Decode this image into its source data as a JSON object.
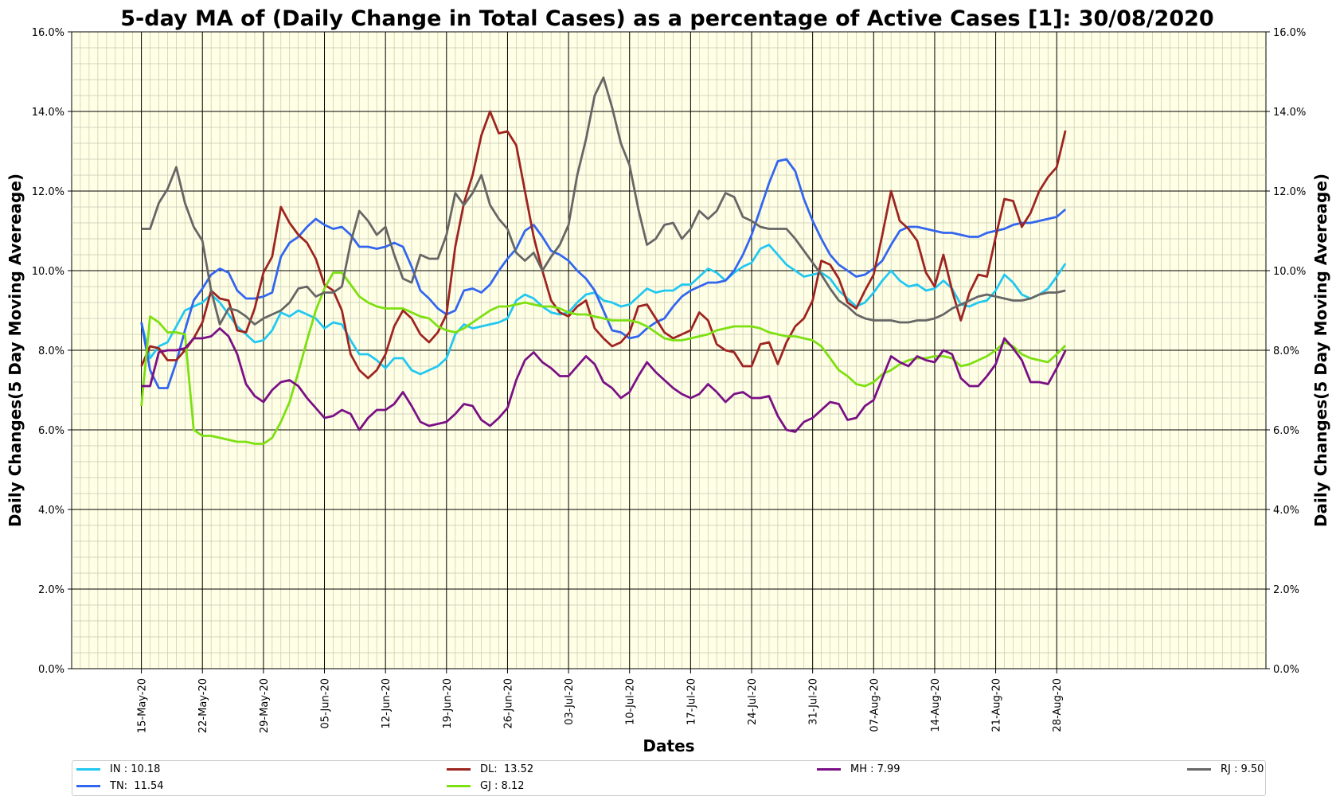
{
  "chart_data": {
    "type": "line",
    "title": "5-day MA of (Daily Change in Total Cases) as a percentage of Active Cases [1]: 30/08/2020",
    "xlabel": "Dates",
    "ylabel": "Daily Changes(5 Day Moving Avereage)",
    "ylim": [
      0,
      16
    ],
    "y_ticks": [
      "0.0%",
      "2.0%",
      "4.0%",
      "6.0%",
      "8.0%",
      "10.0%",
      "12.0%",
      "14.0%",
      "16.0%"
    ],
    "x_ticks": [
      "15-May-20",
      "22-May-20",
      "29-May-20",
      "05-Jun-20",
      "12-Jun-20",
      "19-Jun-20",
      "26-Jun-20",
      "03-Jul-20",
      "10-Jul-20",
      "17-Jul-20",
      "24-Jul-20",
      "31-Jul-20",
      "07-Aug-20",
      "14-Aug-20",
      "21-Aug-20",
      "28-Aug-20"
    ],
    "x_start": "15-May-20",
    "grid": true,
    "legend_position": "bottom",
    "background_color": "#ffffe6",
    "series": [
      {
        "name": "IN : 10.18",
        "color": "#22c8f0",
        "values": [
          8.7,
          7.8,
          8.1,
          8.2,
          8.6,
          9.0,
          9.1,
          9.2,
          9.4,
          9.2,
          8.9,
          8.6,
          8.4,
          8.2,
          8.25,
          8.5,
          8.95,
          8.85,
          9.0,
          8.9,
          8.8,
          8.55,
          8.7,
          8.65,
          8.25,
          7.9,
          7.9,
          7.75,
          7.55,
          7.8,
          7.8,
          7.5,
          7.4,
          7.5,
          7.6,
          7.8,
          8.4,
          8.65,
          8.55,
          8.6,
          8.65,
          8.7,
          8.8,
          9.25,
          9.4,
          9.3,
          9.1,
          8.95,
          8.9,
          8.95,
          9.2,
          9.4,
          9.45,
          9.25,
          9.2,
          9.1,
          9.15,
          9.35,
          9.55,
          9.45,
          9.5,
          9.5,
          9.65,
          9.65,
          9.85,
          10.05,
          9.95,
          9.75,
          9.95,
          10.1,
          10.2,
          10.55,
          10.65,
          10.4,
          10.15,
          10.0,
          9.85,
          9.9,
          9.95,
          9.8,
          9.5,
          9.3,
          9.1,
          9.2,
          9.45,
          9.75,
          10.0,
          9.75,
          9.6,
          9.65,
          9.5,
          9.55,
          9.75,
          9.55,
          9.15,
          9.1,
          9.2,
          9.25,
          9.5,
          9.9,
          9.7,
          9.4,
          9.3,
          9.4,
          9.55,
          9.85,
          10.18
        ]
      },
      {
        "name": "TN:  11.54",
        "color": "#3366ee",
        "values": [
          8.7,
          7.5,
          7.05,
          7.05,
          7.7,
          8.5,
          9.25,
          9.55,
          9.9,
          10.05,
          9.95,
          9.5,
          9.3,
          9.3,
          9.35,
          9.45,
          10.35,
          10.7,
          10.85,
          11.1,
          11.3,
          11.15,
          11.05,
          11.1,
          10.9,
          10.6,
          10.6,
          10.55,
          10.6,
          10.7,
          10.6,
          10.1,
          9.5,
          9.3,
          9.05,
          8.9,
          9.0,
          9.5,
          9.55,
          9.45,
          9.65,
          10.0,
          10.3,
          10.55,
          11.0,
          11.15,
          10.85,
          10.5,
          10.4,
          10.25,
          10.0,
          9.8,
          9.5,
          9.0,
          8.5,
          8.45,
          8.3,
          8.35,
          8.55,
          8.7,
          8.8,
          9.1,
          9.35,
          9.5,
          9.6,
          9.7,
          9.7,
          9.75,
          10.0,
          10.4,
          10.9,
          11.55,
          12.2,
          12.75,
          12.8,
          12.5,
          11.8,
          11.25,
          10.8,
          10.4,
          10.15,
          10.0,
          9.85,
          9.9,
          10.05,
          10.25,
          10.65,
          11.0,
          11.1,
          11.1,
          11.05,
          11.0,
          10.95,
          10.95,
          10.9,
          10.85,
          10.85,
          10.95,
          11.0,
          11.05,
          11.15,
          11.2,
          11.2,
          11.25,
          11.3,
          11.35,
          11.54
        ]
      },
      {
        "name": "DL:  13.52",
        "color": "#9e2420",
        "values": [
          7.6,
          8.1,
          8.05,
          7.75,
          7.75,
          8.0,
          8.3,
          8.7,
          9.5,
          9.3,
          9.25,
          8.5,
          8.45,
          9.05,
          9.95,
          10.35,
          11.6,
          11.2,
          10.9,
          10.7,
          10.3,
          9.65,
          9.5,
          9.0,
          7.9,
          7.5,
          7.3,
          7.5,
          7.9,
          8.6,
          9.0,
          8.8,
          8.4,
          8.2,
          8.45,
          8.9,
          10.6,
          11.7,
          12.4,
          13.4,
          14.0,
          13.45,
          13.5,
          13.15,
          12.0,
          10.85,
          10.0,
          9.25,
          8.95,
          8.85,
          9.1,
          9.25,
          8.55,
          8.3,
          8.1,
          8.2,
          8.45,
          9.1,
          9.15,
          8.8,
          8.45,
          8.3,
          8.4,
          8.5,
          8.95,
          8.75,
          8.15,
          8.0,
          7.95,
          7.6,
          7.6,
          8.15,
          8.2,
          7.65,
          8.2,
          8.6,
          8.8,
          9.25,
          10.25,
          10.15,
          9.8,
          9.2,
          9.05,
          9.5,
          9.9,
          10.9,
          12.0,
          11.25,
          11.05,
          10.75,
          9.95,
          9.6,
          10.4,
          9.5,
          8.75,
          9.45,
          9.9,
          9.85,
          10.85,
          11.8,
          11.75,
          11.1,
          11.45,
          12.0,
          12.35,
          12.6,
          13.52
        ]
      },
      {
        "name": "GJ : 8.12",
        "color": "#7de010",
        "values": [
          6.6,
          8.85,
          8.7,
          8.45,
          8.45,
          8.4,
          6.0,
          5.85,
          5.85,
          5.8,
          5.75,
          5.7,
          5.7,
          5.65,
          5.65,
          5.8,
          6.2,
          6.7,
          7.45,
          8.25,
          9.0,
          9.55,
          9.95,
          9.95,
          9.65,
          9.35,
          9.2,
          9.1,
          9.05,
          9.05,
          9.05,
          8.95,
          8.85,
          8.8,
          8.6,
          8.5,
          8.45,
          8.55,
          8.7,
          8.85,
          9.0,
          9.1,
          9.1,
          9.15,
          9.2,
          9.15,
          9.1,
          9.1,
          9.05,
          8.95,
          8.9,
          8.9,
          8.85,
          8.8,
          8.75,
          8.75,
          8.75,
          8.7,
          8.6,
          8.45,
          8.3,
          8.25,
          8.25,
          8.3,
          8.35,
          8.4,
          8.5,
          8.55,
          8.6,
          8.6,
          8.6,
          8.55,
          8.45,
          8.4,
          8.35,
          8.35,
          8.3,
          8.25,
          8.1,
          7.8,
          7.5,
          7.35,
          7.15,
          7.1,
          7.2,
          7.4,
          7.5,
          7.65,
          7.75,
          7.8,
          7.8,
          7.85,
          7.85,
          7.8,
          7.6,
          7.65,
          7.75,
          7.85,
          8.0,
          8.2,
          8.1,
          7.9,
          7.8,
          7.75,
          7.7,
          7.9,
          8.12
        ]
      },
      {
        "name": "MH : 7.99",
        "color": "#7a1085",
        "values": [
          7.1,
          7.1,
          7.95,
          8.0,
          8.0,
          8.05,
          8.3,
          8.3,
          8.35,
          8.55,
          8.35,
          7.9,
          7.15,
          6.85,
          6.7,
          7.0,
          7.2,
          7.25,
          7.1,
          6.8,
          6.55,
          6.3,
          6.35,
          6.5,
          6.4,
          6.0,
          6.3,
          6.5,
          6.5,
          6.65,
          6.95,
          6.6,
          6.2,
          6.1,
          6.15,
          6.2,
          6.4,
          6.65,
          6.6,
          6.25,
          6.1,
          6.3,
          6.55,
          7.25,
          7.75,
          7.95,
          7.7,
          7.55,
          7.35,
          7.35,
          7.6,
          7.85,
          7.65,
          7.2,
          7.05,
          6.8,
          6.95,
          7.35,
          7.7,
          7.45,
          7.25,
          7.05,
          6.9,
          6.8,
          6.9,
          7.15,
          6.95,
          6.7,
          6.9,
          6.95,
          6.8,
          6.8,
          6.85,
          6.35,
          6.0,
          5.95,
          6.2,
          6.3,
          6.5,
          6.7,
          6.65,
          6.25,
          6.3,
          6.6,
          6.75,
          7.3,
          7.85,
          7.7,
          7.6,
          7.85,
          7.75,
          7.7,
          8.0,
          7.9,
          7.3,
          7.1,
          7.1,
          7.35,
          7.65,
          8.3,
          8.05,
          7.75,
          7.2,
          7.2,
          7.15,
          7.55,
          7.99
        ]
      },
      {
        "name": "RJ : 9.50",
        "color": "#666666",
        "values": [
          11.05,
          11.05,
          11.7,
          12.05,
          12.6,
          11.7,
          11.1,
          10.75,
          9.5,
          8.65,
          9.05,
          9.0,
          8.85,
          8.65,
          8.8,
          8.9,
          9.0,
          9.2,
          9.55,
          9.6,
          9.35,
          9.45,
          9.45,
          9.6,
          10.7,
          11.5,
          11.25,
          10.9,
          11.1,
          10.4,
          9.8,
          9.7,
          10.4,
          10.3,
          10.3,
          10.9,
          11.95,
          11.65,
          11.95,
          12.4,
          11.65,
          11.3,
          11.05,
          10.45,
          10.25,
          10.45,
          10.0,
          10.35,
          10.65,
          11.15,
          12.4,
          13.3,
          14.4,
          14.85,
          14.1,
          13.2,
          12.65,
          11.55,
          10.65,
          10.8,
          11.15,
          11.2,
          10.8,
          11.05,
          11.5,
          11.3,
          11.5,
          11.95,
          11.85,
          11.35,
          11.25,
          11.1,
          11.05,
          11.05,
          11.05,
          10.8,
          10.5,
          10.2,
          9.9,
          9.55,
          9.25,
          9.1,
          8.9,
          8.8,
          8.75,
          8.75,
          8.75,
          8.7,
          8.7,
          8.75,
          8.75,
          8.8,
          8.9,
          9.05,
          9.15,
          9.25,
          9.35,
          9.4,
          9.35,
          9.3,
          9.25,
          9.25,
          9.3,
          9.4,
          9.45,
          9.45,
          9.5
        ]
      }
    ]
  }
}
